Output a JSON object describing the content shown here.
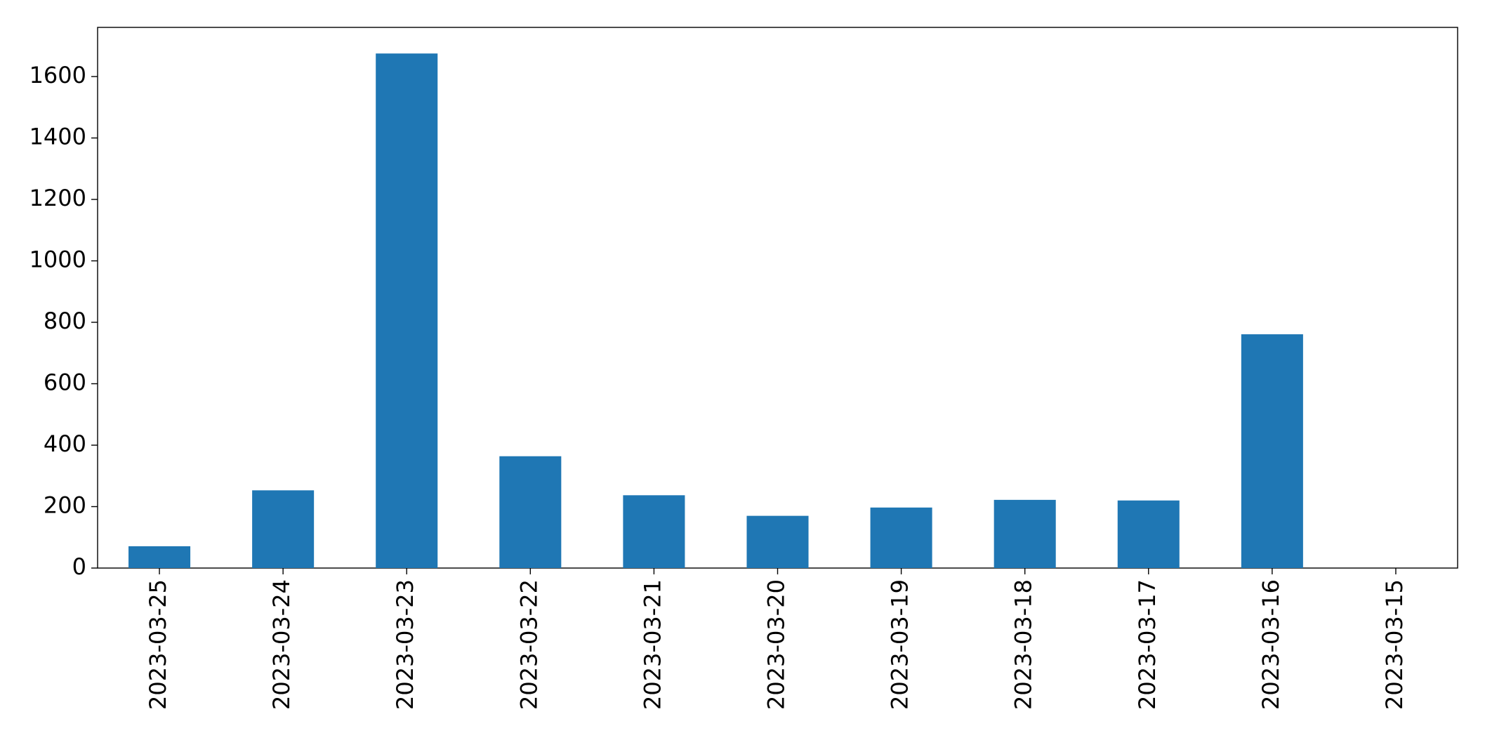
{
  "chart_data": {
    "type": "bar",
    "categories": [
      "2023-03-25",
      "2023-03-24",
      "2023-03-23",
      "2023-03-22",
      "2023-03-21",
      "2023-03-20",
      "2023-03-19",
      "2023-03-18",
      "2023-03-17",
      "2023-03-16",
      "2023-03-15"
    ],
    "values": [
      71,
      253,
      1675,
      364,
      237,
      170,
      197,
      222,
      220,
      761,
      0
    ],
    "color": "#1f77b4",
    "ylim": [
      0,
      1760
    ],
    "yticks": [
      0,
      200,
      400,
      600,
      800,
      1000,
      1200,
      1400,
      1600
    ],
    "grid": false
  }
}
